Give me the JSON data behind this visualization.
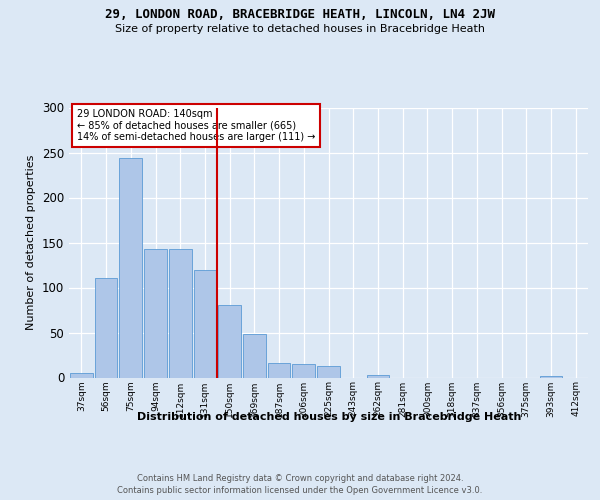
{
  "title1": "29, LONDON ROAD, BRACEBRIDGE HEATH, LINCOLN, LN4 2JW",
  "title2": "Size of property relative to detached houses in Bracebridge Heath",
  "xlabel": "Distribution of detached houses by size in Bracebridge Heath",
  "ylabel": "Number of detached properties",
  "footer1": "Contains HM Land Registry data © Crown copyright and database right 2024.",
  "footer2": "Contains public sector information licensed under the Open Government Licence v3.0.",
  "categories": [
    "37sqm",
    "56sqm",
    "75sqm",
    "94sqm",
    "112sqm",
    "131sqm",
    "150sqm",
    "169sqm",
    "187sqm",
    "206sqm",
    "225sqm",
    "243sqm",
    "262sqm",
    "281sqm",
    "300sqm",
    "318sqm",
    "337sqm",
    "356sqm",
    "375sqm",
    "393sqm",
    "412sqm"
  ],
  "values": [
    5,
    111,
    244,
    143,
    143,
    120,
    81,
    48,
    16,
    15,
    13,
    0,
    3,
    0,
    0,
    0,
    0,
    0,
    0,
    2,
    0
  ],
  "bar_color": "#aec6e8",
  "bar_edge_color": "#5b9bd5",
  "vline_color": "#cc0000",
  "annotation_box_text": "29 LONDON ROAD: 140sqm\n← 85% of detached houses are smaller (665)\n14% of semi-detached houses are larger (111) →",
  "annotation_box_color": "#cc0000",
  "ylim": [
    0,
    300
  ],
  "yticks": [
    0,
    50,
    100,
    150,
    200,
    250,
    300
  ],
  "bg_color": "#dce8f5",
  "plot_bg_color": "#dce8f5"
}
